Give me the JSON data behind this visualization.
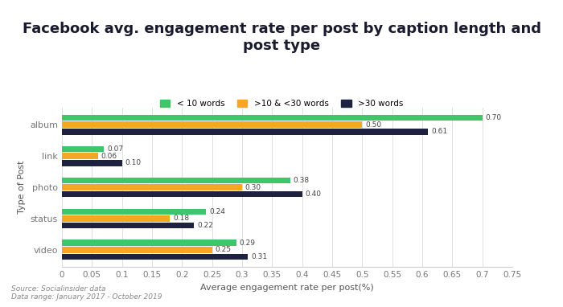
{
  "title": "Facebook avg. engagement rate per post by caption length and\npost type",
  "xlabel": "Average engagement rate per post(%)",
  "ylabel": "Type of Post",
  "categories": [
    "album",
    "link",
    "photo",
    "status",
    "video"
  ],
  "series": {
    "< 10 words": [
      0.7,
      0.07,
      0.38,
      0.24,
      0.29
    ],
    ">10 & <30 words": [
      0.5,
      0.06,
      0.3,
      0.18,
      0.25
    ],
    ">30 words": [
      0.61,
      0.1,
      0.4,
      0.22,
      0.31
    ]
  },
  "colors": {
    "< 10 words": "#3ec76a",
    ">10 & <30 words": "#f5a623",
    ">30 words": "#1e2240"
  },
  "xlim": [
    0,
    0.75
  ],
  "xticks": [
    0,
    0.05,
    0.1,
    0.15,
    0.2,
    0.25,
    0.3,
    0.35,
    0.4,
    0.45,
    0.5,
    0.55,
    0.6,
    0.65,
    0.7,
    0.75
  ],
  "bar_height": 0.22,
  "background_color": "#ffffff",
  "source_text": "Source: Socialinsider data\nData range: January 2017 - October 2019",
  "title_fontsize": 13,
  "label_fontsize": 8,
  "tick_fontsize": 7.5
}
